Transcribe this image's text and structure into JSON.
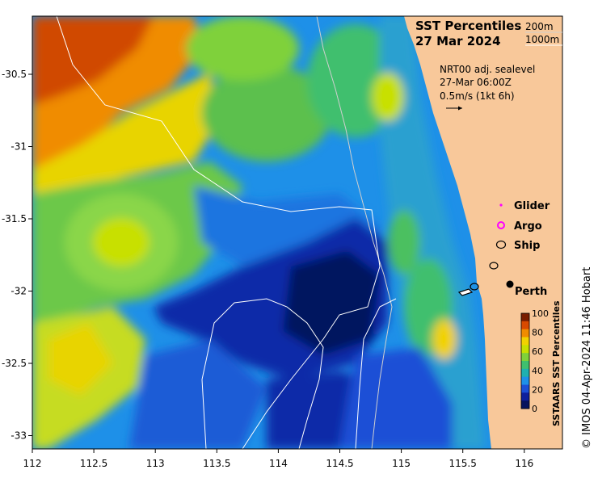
{
  "title": {
    "line1": "SST Percentiles",
    "line2": "27 Mar 2024"
  },
  "depth_legend": {
    "contour1": "200m",
    "contour2": "1000m"
  },
  "current_info": {
    "line1": "NRT00 adj. sealevel",
    "line2": "27-Mar 06:00Z",
    "line3": "0.5m/s (1kt 6h)"
  },
  "legend": {
    "glider": "Glider",
    "argo": "Argo",
    "ship": "Ship"
  },
  "place": {
    "perth": "Perth"
  },
  "colorbar": {
    "label": "SSTAARS SST Percentiles",
    "ticks": [
      "100",
      "80",
      "60",
      "40",
      "20",
      "0"
    ],
    "colors": [
      "#7a1e00",
      "#d94a00",
      "#f08c00",
      "#f2d200",
      "#c8e000",
      "#7fd13a",
      "#3fbf6e",
      "#1fb0b0",
      "#1e90e8",
      "#1c4fd6",
      "#0e1f9c",
      "#06135e"
    ]
  },
  "axes": {
    "x_ticks": [
      "112",
      "112.5",
      "113",
      "113.5",
      "114",
      "114.5",
      "115",
      "115.5",
      "116"
    ],
    "y_ticks": [
      "-30.5",
      "-31",
      "-31.5",
      "-32",
      "-32.5",
      "-33"
    ]
  },
  "credit": "© IMOS 04-Apr-2024 11:46 Hobart",
  "colors": {
    "land": "#f8c89a",
    "argo_marker": "#ff00ff",
    "glider_marker": "#ff00ff"
  }
}
